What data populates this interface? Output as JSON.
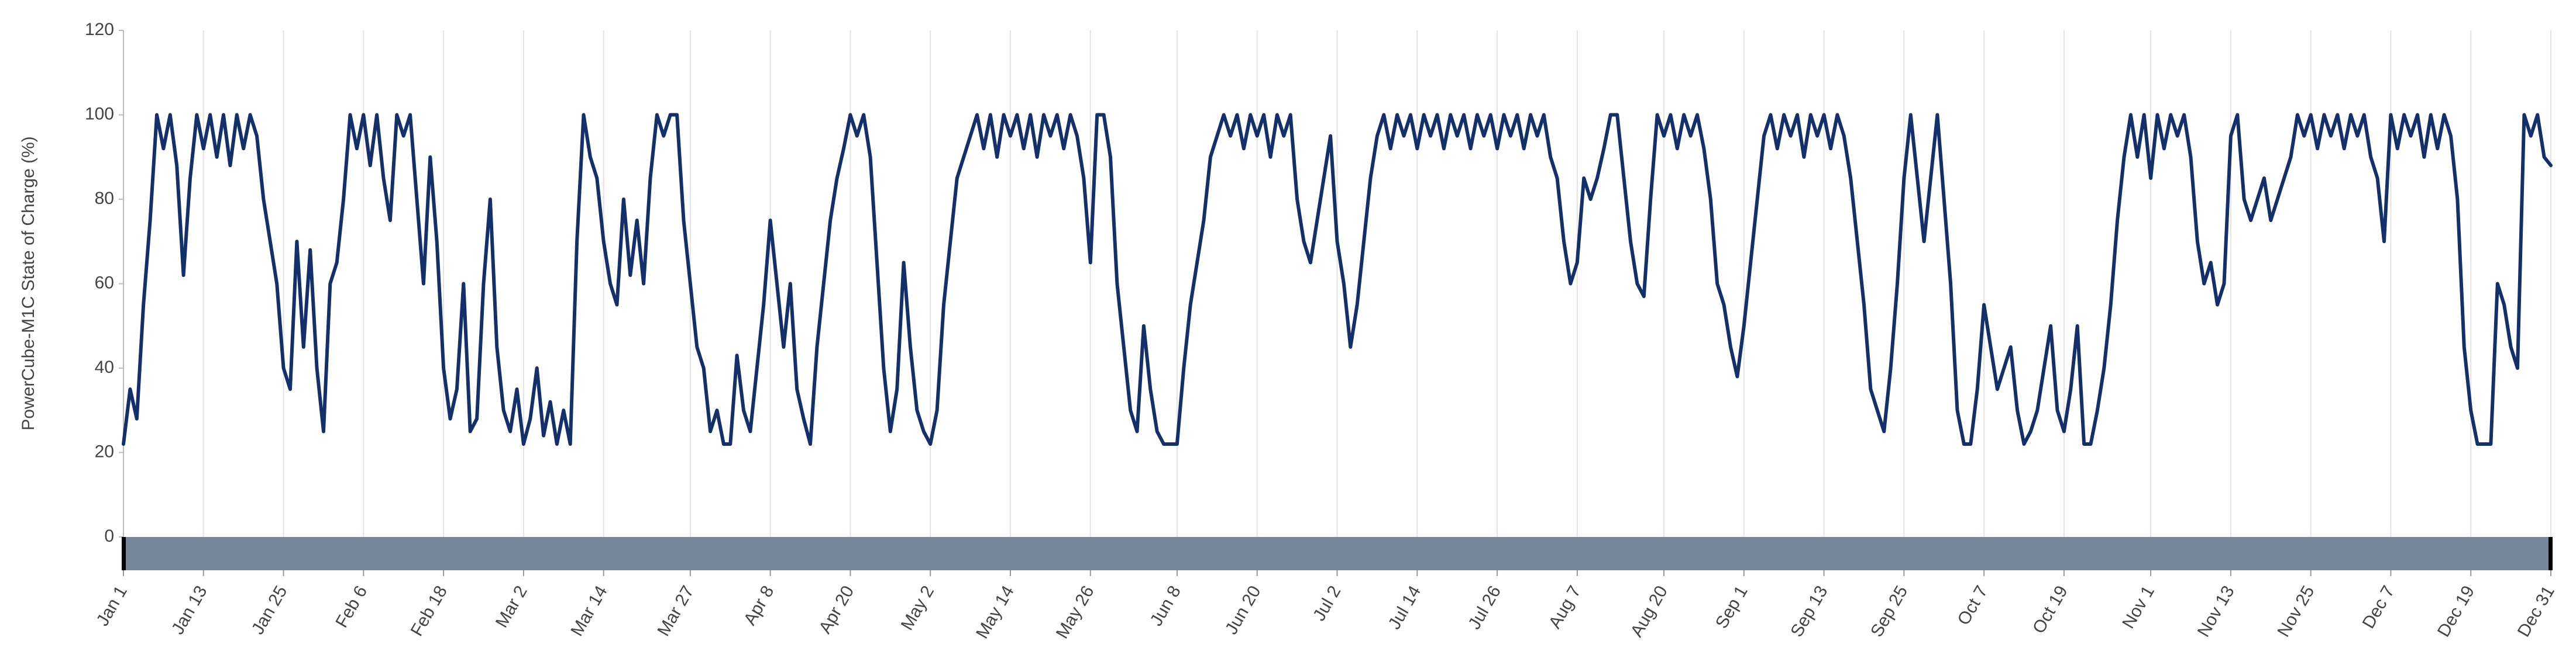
{
  "chart_data": {
    "type": "line",
    "y_label": "PowerCube-M1C State of Charge (%)",
    "color": "#14306b",
    "grid": "x",
    "xlim": [
      0,
      364
    ],
    "ylim": [
      0,
      120
    ],
    "yticks": [
      0,
      20,
      40,
      60,
      80,
      100,
      120
    ],
    "xticks": [
      {
        "value": 0,
        "label": "Jan 1"
      },
      {
        "value": 12,
        "label": "Jan 13"
      },
      {
        "value": 24,
        "label": "Jan 25"
      },
      {
        "value": 36,
        "label": "Feb 6"
      },
      {
        "value": 48,
        "label": "Feb 18"
      },
      {
        "value": 60,
        "label": "Mar 2"
      },
      {
        "value": 72,
        "label": "Mar 14"
      },
      {
        "value": 85,
        "label": "Mar 27"
      },
      {
        "value": 97,
        "label": "Apr 8"
      },
      {
        "value": 109,
        "label": "Apr 20"
      },
      {
        "value": 121,
        "label": "May 2"
      },
      {
        "value": 133,
        "label": "May 14"
      },
      {
        "value": 145,
        "label": "May 26"
      },
      {
        "value": 158,
        "label": "Jun 8"
      },
      {
        "value": 170,
        "label": "Jun 20"
      },
      {
        "value": 182,
        "label": "Jul 2"
      },
      {
        "value": 194,
        "label": "Jul 14"
      },
      {
        "value": 206,
        "label": "Jul 26"
      },
      {
        "value": 218,
        "label": "Aug 7"
      },
      {
        "value": 231,
        "label": "Aug 20"
      },
      {
        "value": 243,
        "label": "Sep 1"
      },
      {
        "value": 255,
        "label": "Sep 13"
      },
      {
        "value": 267,
        "label": "Sep 25"
      },
      {
        "value": 279,
        "label": "Oct 7"
      },
      {
        "value": 291,
        "label": "Oct 19"
      },
      {
        "value": 304,
        "label": "Nov 1"
      },
      {
        "value": 316,
        "label": "Nov 13"
      },
      {
        "value": 328,
        "label": "Nov 25"
      },
      {
        "value": 340,
        "label": "Dec 7"
      },
      {
        "value": 352,
        "label": "Dec 19"
      },
      {
        "value": 364,
        "label": "Dec 31"
      }
    ],
    "x": [
      0,
      1,
      2,
      3,
      4,
      5,
      6,
      7,
      8,
      9,
      10,
      11,
      12,
      13,
      14,
      15,
      16,
      17,
      18,
      19,
      20,
      21,
      22,
      23,
      24,
      25,
      26,
      27,
      28,
      29,
      30,
      31,
      32,
      33,
      34,
      35,
      36,
      37,
      38,
      39,
      40,
      41,
      42,
      43,
      44,
      45,
      46,
      47,
      48,
      49,
      50,
      51,
      52,
      53,
      54,
      55,
      56,
      57,
      58,
      59,
      60,
      61,
      62,
      63,
      64,
      65,
      66,
      67,
      68,
      69,
      70,
      71,
      72,
      73,
      74,
      75,
      76,
      77,
      78,
      79,
      80,
      81,
      82,
      83,
      84,
      85,
      86,
      87,
      88,
      89,
      90,
      91,
      92,
      93,
      94,
      95,
      96,
      97,
      98,
      99,
      100,
      101,
      102,
      103,
      104,
      105,
      106,
      107,
      108,
      109,
      110,
      111,
      112,
      113,
      114,
      115,
      116,
      117,
      118,
      119,
      120,
      121,
      122,
      123,
      124,
      125,
      126,
      127,
      128,
      129,
      130,
      131,
      132,
      133,
      134,
      135,
      136,
      137,
      138,
      139,
      140,
      141,
      142,
      143,
      144,
      145,
      146,
      147,
      148,
      149,
      150,
      151,
      152,
      153,
      154,
      155,
      156,
      157,
      158,
      159,
      160,
      161,
      162,
      163,
      164,
      165,
      166,
      167,
      168,
      169,
      170,
      171,
      172,
      173,
      174,
      175,
      176,
      177,
      178,
      179,
      180,
      181,
      182,
      183,
      184,
      185,
      186,
      187,
      188,
      189,
      190,
      191,
      192,
      193,
      194,
      195,
      196,
      197,
      198,
      199,
      200,
      201,
      202,
      203,
      204,
      205,
      206,
      207,
      208,
      209,
      210,
      211,
      212,
      213,
      214,
      215,
      216,
      217,
      218,
      219,
      220,
      221,
      222,
      223,
      224,
      225,
      226,
      227,
      228,
      229,
      230,
      231,
      232,
      233,
      234,
      235,
      236,
      237,
      238,
      239,
      240,
      241,
      242,
      243,
      244,
      245,
      246,
      247,
      248,
      249,
      250,
      251,
      252,
      253,
      254,
      255,
      256,
      257,
      258,
      259,
      260,
      261,
      262,
      263,
      264,
      265,
      266,
      267,
      268,
      269,
      270,
      271,
      272,
      273,
      274,
      275,
      276,
      277,
      278,
      279,
      280,
      281,
      282,
      283,
      284,
      285,
      286,
      287,
      288,
      289,
      290,
      291,
      292,
      293,
      294,
      295,
      296,
      297,
      298,
      299,
      300,
      301,
      302,
      303,
      304,
      305,
      306,
      307,
      308,
      309,
      310,
      311,
      312,
      313,
      314,
      315,
      316,
      317,
      318,
      319,
      320,
      321,
      322,
      323,
      324,
      325,
      326,
      327,
      328,
      329,
      330,
      331,
      332,
      333,
      334,
      335,
      336,
      337,
      338,
      339,
      340,
      341,
      342,
      343,
      344,
      345,
      346,
      347,
      348,
      349,
      350,
      351,
      352,
      353,
      354,
      355,
      356,
      357,
      358,
      359,
      360,
      361,
      362,
      363,
      364
    ],
    "values": [
      22,
      35,
      28,
      55,
      75,
      100,
      92,
      100,
      88,
      62,
      85,
      100,
      92,
      100,
      90,
      100,
      88,
      100,
      92,
      100,
      95,
      80,
      70,
      60,
      40,
      35,
      70,
      45,
      68,
      40,
      25,
      60,
      65,
      80,
      100,
      92,
      100,
      88,
      100,
      85,
      75,
      100,
      95,
      100,
      80,
      60,
      90,
      70,
      40,
      28,
      35,
      60,
      25,
      28,
      60,
      80,
      45,
      30,
      25,
      35,
      22,
      28,
      40,
      24,
      32,
      22,
      30,
      22,
      70,
      100,
      90,
      85,
      70,
      60,
      55,
      80,
      62,
      75,
      60,
      85,
      100,
      95,
      100,
      100,
      75,
      60,
      45,
      40,
      25,
      30,
      22,
      22,
      43,
      30,
      25,
      40,
      55,
      75,
      60,
      45,
      60,
      35,
      28,
      22,
      45,
      60,
      75,
      85,
      92,
      100,
      95,
      100,
      90,
      65,
      40,
      25,
      35,
      65,
      45,
      30,
      25,
      22,
      30,
      55,
      70,
      85,
      90,
      95,
      100,
      92,
      100,
      90,
      100,
      95,
      100,
      92,
      100,
      90,
      100,
      95,
      100,
      92,
      100,
      95,
      85,
      65,
      100,
      100,
      90,
      60,
      45,
      30,
      25,
      50,
      35,
      25,
      22,
      22,
      22,
      40,
      55,
      65,
      75,
      90,
      95,
      100,
      95,
      100,
      92,
      100,
      95,
      100,
      90,
      100,
      95,
      100,
      80,
      70,
      65,
      75,
      85,
      95,
      70,
      60,
      45,
      55,
      70,
      85,
      95,
      100,
      92,
      100,
      95,
      100,
      92,
      100,
      95,
      100,
      92,
      100,
      95,
      100,
      92,
      100,
      95,
      100,
      92,
      100,
      95,
      100,
      92,
      100,
      95,
      100,
      90,
      85,
      70,
      60,
      65,
      85,
      80,
      85,
      92,
      100,
      100,
      85,
      70,
      60,
      57,
      80,
      100,
      95,
      100,
      92,
      100,
      95,
      100,
      92,
      80,
      60,
      55,
      45,
      38,
      50,
      65,
      80,
      95,
      100,
      92,
      100,
      95,
      100,
      90,
      100,
      95,
      100,
      92,
      100,
      95,
      85,
      70,
      55,
      35,
      30,
      25,
      40,
      60,
      85,
      100,
      85,
      70,
      85,
      100,
      80,
      60,
      30,
      22,
      22,
      35,
      55,
      45,
      35,
      40,
      45,
      30,
      22,
      25,
      30,
      40,
      50,
      30,
      25,
      35,
      50,
      22,
      22,
      30,
      40,
      55,
      75,
      90,
      100,
      90,
      100,
      85,
      100,
      92,
      100,
      95,
      100,
      90,
      70,
      60,
      65,
      55,
      60,
      95,
      100,
      80,
      75,
      80,
      85,
      75,
      80,
      85,
      90,
      100,
      95,
      100,
      92,
      100,
      95,
      100,
      92,
      100,
      95,
      100,
      90,
      85,
      70,
      100,
      92,
      100,
      95,
      100,
      90,
      100,
      92,
      100,
      95,
      80,
      45,
      30,
      22,
      22,
      22,
      60,
      55,
      45,
      40,
      100,
      95,
      100,
      90,
      88
    ]
  }
}
